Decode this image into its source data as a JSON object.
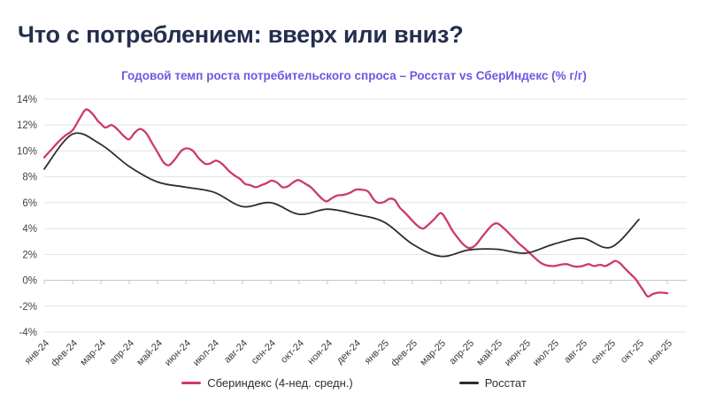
{
  "title": "Что с потреблением: вверх или вниз?",
  "colors": {
    "title": "#242e4e",
    "subtitle": "#6a5ae0",
    "grid": "#e2e2e2",
    "axis": "#c7c7c7",
    "background": "#ffffff"
  },
  "chart_data": {
    "type": "line",
    "title": "Годовой темп роста потребительского спроса – Росстат vs СберИндекс (% г/г)",
    "x_categories": [
      "янв-24",
      "фев-24",
      "мар-24",
      "апр-24",
      "май-24",
      "июн-24",
      "июл-24",
      "авг-24",
      "сен-24",
      "окт-24",
      "ноя-24",
      "дек-24",
      "янв-25",
      "фев-25",
      "мар-25",
      "апр-25",
      "май-25",
      "июн-25",
      "июл-25",
      "авг-25",
      "сен-25",
      "окт-25",
      "ноя-25"
    ],
    "y_ticks": [
      14,
      12,
      10,
      8,
      6,
      4,
      2,
      0,
      -2,
      -4
    ],
    "ylim": [
      -4,
      14
    ],
    "y_unit": "%",
    "grid": "horizontal",
    "legend_position": "bottom",
    "series": [
      {
        "name": "Сбериндекс (4-нед. средн.)",
        "color": "#cb3a6b",
        "x_unit": "month-index of x_categories (fractional = weekly points)",
        "points": [
          [
            0,
            9.5
          ],
          [
            0.25,
            10.1
          ],
          [
            0.5,
            10.7
          ],
          [
            0.75,
            11.2
          ],
          [
            1,
            11.6
          ],
          [
            1.25,
            12.5
          ],
          [
            1.47,
            13.2
          ],
          [
            1.69,
            12.9
          ],
          [
            1.88,
            12.35
          ],
          [
            2,
            12.1
          ],
          [
            2.16,
            11.8
          ],
          [
            2.38,
            12.0
          ],
          [
            2.59,
            11.65
          ],
          [
            2.81,
            11.15
          ],
          [
            3,
            10.9
          ],
          [
            3.19,
            11.4
          ],
          [
            3.38,
            11.7
          ],
          [
            3.59,
            11.4
          ],
          [
            3.81,
            10.6
          ],
          [
            4,
            9.9
          ],
          [
            4.22,
            9.1
          ],
          [
            4.41,
            8.9
          ],
          [
            4.63,
            9.4
          ],
          [
            4.84,
            10.0
          ],
          [
            5.03,
            10.2
          ],
          [
            5.25,
            10.0
          ],
          [
            5.47,
            9.4
          ],
          [
            5.69,
            9.0
          ],
          [
            5.88,
            9.05
          ],
          [
            6.06,
            9.25
          ],
          [
            6.28,
            9.0
          ],
          [
            6.5,
            8.5
          ],
          [
            6.72,
            8.1
          ],
          [
            6.91,
            7.85
          ],
          [
            7.09,
            7.45
          ],
          [
            7.28,
            7.35
          ],
          [
            7.47,
            7.2
          ],
          [
            7.66,
            7.35
          ],
          [
            7.84,
            7.5
          ],
          [
            8.03,
            7.7
          ],
          [
            8.22,
            7.55
          ],
          [
            8.41,
            7.2
          ],
          [
            8.59,
            7.25
          ],
          [
            8.78,
            7.55
          ],
          [
            8.97,
            7.75
          ],
          [
            9.19,
            7.5
          ],
          [
            9.41,
            7.2
          ],
          [
            9.63,
            6.7
          ],
          [
            9.81,
            6.3
          ],
          [
            9.97,
            6.1
          ],
          [
            10.16,
            6.35
          ],
          [
            10.34,
            6.55
          ],
          [
            10.56,
            6.6
          ],
          [
            10.78,
            6.75
          ],
          [
            11,
            7.0
          ],
          [
            11.22,
            7.0
          ],
          [
            11.44,
            6.85
          ],
          [
            11.63,
            6.25
          ],
          [
            11.78,
            6.0
          ],
          [
            12,
            6.05
          ],
          [
            12.19,
            6.3
          ],
          [
            12.38,
            6.2
          ],
          [
            12.56,
            5.6
          ],
          [
            12.75,
            5.2
          ],
          [
            13,
            4.6
          ],
          [
            13.19,
            4.2
          ],
          [
            13.38,
            4.0
          ],
          [
            13.59,
            4.35
          ],
          [
            13.78,
            4.75
          ],
          [
            14,
            5.2
          ],
          [
            14.19,
            4.7
          ],
          [
            14.41,
            3.85
          ],
          [
            14.63,
            3.2
          ],
          [
            14.81,
            2.75
          ],
          [
            15,
            2.5
          ],
          [
            15.22,
            2.7
          ],
          [
            15.44,
            3.3
          ],
          [
            15.66,
            3.9
          ],
          [
            15.84,
            4.3
          ],
          [
            16,
            4.4
          ],
          [
            16.19,
            4.1
          ],
          [
            16.38,
            3.7
          ],
          [
            16.56,
            3.3
          ],
          [
            16.78,
            2.8
          ],
          [
            17,
            2.4
          ],
          [
            17.19,
            2.0
          ],
          [
            17.34,
            1.7
          ],
          [
            17.53,
            1.35
          ],
          [
            17.75,
            1.15
          ],
          [
            18,
            1.1
          ],
          [
            18.22,
            1.2
          ],
          [
            18.44,
            1.25
          ],
          [
            18.66,
            1.1
          ],
          [
            18.81,
            1.05
          ],
          [
            19,
            1.1
          ],
          [
            19.22,
            1.25
          ],
          [
            19.41,
            1.1
          ],
          [
            19.63,
            1.2
          ],
          [
            19.81,
            1.1
          ],
          [
            20,
            1.3
          ],
          [
            20.16,
            1.5
          ],
          [
            20.34,
            1.3
          ],
          [
            20.53,
            0.85
          ],
          [
            20.72,
            0.45
          ],
          [
            20.88,
            0.1
          ],
          [
            21,
            -0.3
          ],
          [
            21.16,
            -0.8
          ],
          [
            21.31,
            -1.25
          ],
          [
            21.5,
            -1.05
          ],
          [
            21.72,
            -0.95
          ],
          [
            22,
            -1.0
          ]
        ]
      },
      {
        "name": "Росстат",
        "color": "#2d2d2d",
        "x_unit": "month-index of x_categories (monthly points, Jan-24..Oct-25)",
        "points": [
          [
            0,
            8.6
          ],
          [
            1,
            11.3
          ],
          [
            2,
            10.5
          ],
          [
            3,
            8.8
          ],
          [
            4,
            7.6
          ],
          [
            5,
            7.2
          ],
          [
            6,
            6.8
          ],
          [
            7,
            5.7
          ],
          [
            8,
            6.0
          ],
          [
            9,
            5.1
          ],
          [
            10,
            5.5
          ],
          [
            11,
            5.1
          ],
          [
            12,
            4.5
          ],
          [
            13,
            2.8
          ],
          [
            14,
            1.85
          ],
          [
            15,
            2.35
          ],
          [
            16,
            2.4
          ],
          [
            17,
            2.1
          ],
          [
            18,
            2.8
          ],
          [
            19,
            3.25
          ],
          [
            20,
            2.55
          ],
          [
            21,
            4.7
          ]
        ]
      }
    ]
  }
}
